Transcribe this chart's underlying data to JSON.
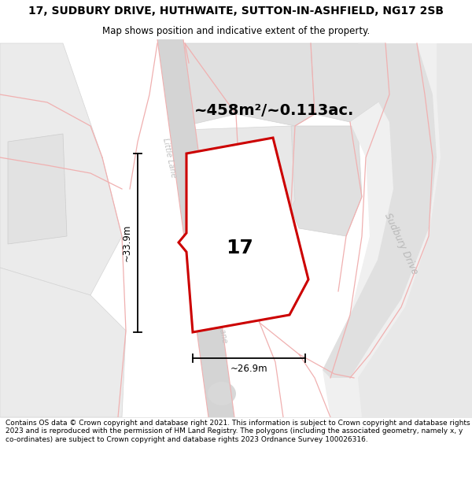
{
  "title_line1": "17, SUDBURY DRIVE, HUTHWAITE, SUTTON-IN-ASHFIELD, NG17 2SB",
  "title_line2": "Map shows position and indicative extent of the property.",
  "footer_text": "Contains OS data © Crown copyright and database right 2021. This information is subject to Crown copyright and database rights 2023 and is reproduced with the permission of HM Land Registry. The polygons (including the associated geometry, namely x, y co-ordinates) are subject to Crown copyright and database rights 2023 Ordnance Survey 100026316.",
  "area_label": "~458m²/~0.113ac.",
  "width_label": "~26.9m",
  "height_label": "~33.9m",
  "property_number": "17",
  "title_fontsize": 10,
  "subtitle_fontsize": 8.5,
  "area_fontsize": 14,
  "number_fontsize": 18,
  "dim_fontsize": 8.5,
  "footer_fontsize": 6.5,
  "bg_color": "#f7f7f7",
  "road_gray": "#d4d4d4",
  "parcel_light": "#ebebeb",
  "parcel_mid": "#e0e0e0",
  "cadastral_pink": "#f0b0b0",
  "plot_fill": "#ffffff",
  "plot_edge": "#cc0000",
  "plot_lw": 2.2,
  "street1": "Little Lane",
  "street2": "Sudbury Drive",
  "street_color": "#c0c0c0"
}
